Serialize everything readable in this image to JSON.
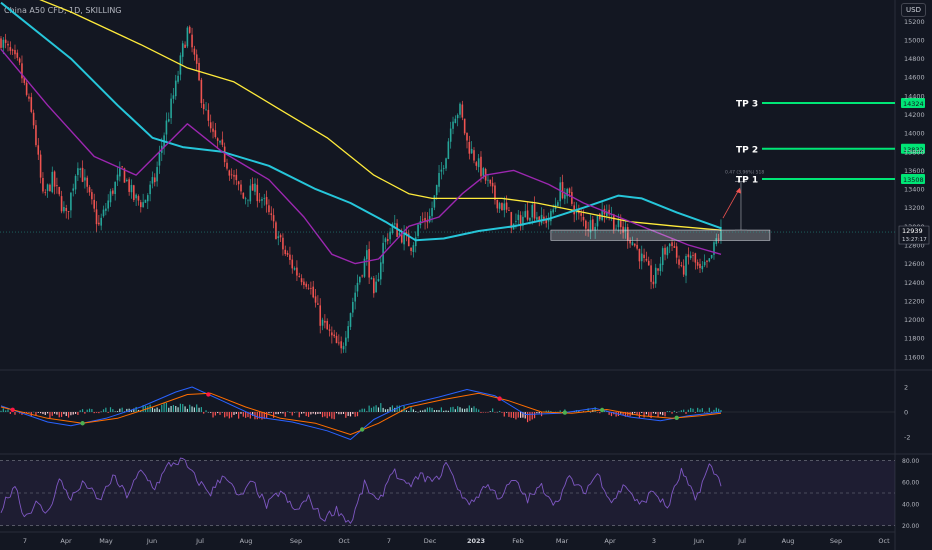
{
  "header": {
    "title": "China A50 CFD, 1D, SKILLING",
    "currency": "USD"
  },
  "colors": {
    "background": "#131722",
    "up": "#26a69a",
    "down": "#ef5350",
    "sma_fast": "#9c27b0",
    "sma_mid": "#26c6da",
    "sma_slow": "#ffeb3b",
    "tp_line": "#00e676",
    "rsi_line": "#7e57c2",
    "macd_line": "#2962ff",
    "signal_line": "#ff6d00"
  },
  "chart_data": [
    {
      "type": "candlestick",
      "name": "price",
      "y_ticks": [
        11600,
        11800,
        12000,
        12200,
        12400,
        12600,
        12800,
        13000,
        13200,
        13400,
        13600,
        13800,
        14000,
        14200,
        14400,
        14600,
        14800,
        15000,
        15200
      ],
      "ylim": [
        11480,
        15300
      ],
      "x_ticks": [
        "7",
        "Apr",
        "May",
        "Jun",
        "Jul",
        "Aug",
        "Sep",
        "Oct",
        "7",
        "Dec",
        "2023",
        "Feb",
        "Mar",
        "Apr",
        "3",
        "Jun",
        "Jul",
        "Aug",
        "Sep",
        "Oct"
      ],
      "close_path": [
        [
          0,
          15000
        ],
        [
          8,
          14700
        ],
        [
          14,
          14100
        ],
        [
          18,
          13300
        ],
        [
          22,
          13500
        ],
        [
          28,
          13100
        ],
        [
          33,
          13700
        ],
        [
          38,
          13300
        ],
        [
          42,
          13000
        ],
        [
          48,
          13400
        ],
        [
          52,
          13600
        ],
        [
          57,
          13300
        ],
        [
          61,
          13250
        ],
        [
          66,
          13500
        ],
        [
          70,
          14000
        ],
        [
          75,
          14500
        ],
        [
          78,
          14900
        ],
        [
          80,
          15100
        ],
        [
          83,
          14800
        ],
        [
          86,
          14400
        ],
        [
          90,
          14000
        ],
        [
          95,
          13800
        ],
        [
          100,
          13500
        ],
        [
          104,
          13300
        ],
        [
          108,
          13400
        ],
        [
          112,
          13300
        ],
        [
          117,
          13000
        ],
        [
          122,
          12700
        ],
        [
          127,
          12500
        ],
        [
          132,
          12400
        ],
        [
          137,
          12000
        ],
        [
          142,
          11800
        ],
        [
          146,
          11650
        ],
        [
          149,
          12000
        ],
        [
          153,
          12400
        ],
        [
          157,
          12700
        ],
        [
          160,
          12200
        ],
        [
          164,
          12800
        ],
        [
          168,
          13000
        ],
        [
          172,
          12900
        ],
        [
          176,
          12800
        ],
        [
          180,
          13050
        ],
        [
          184,
          13100
        ],
        [
          188,
          13500
        ],
        [
          191,
          13800
        ],
        [
          194,
          14200
        ],
        [
          197,
          14250
        ],
        [
          200,
          13900
        ],
        [
          204,
          13700
        ],
        [
          208,
          13500
        ],
        [
          212,
          13300
        ],
        [
          216,
          13200
        ],
        [
          220,
          13000
        ],
        [
          224,
          13100
        ],
        [
          228,
          13200
        ],
        [
          232,
          13050
        ],
        [
          236,
          13100
        ],
        [
          240,
          13400
        ],
        [
          244,
          13300
        ],
        [
          248,
          13100
        ],
        [
          252,
          13000
        ],
        [
          256,
          13100
        ],
        [
          260,
          13200
        ],
        [
          264,
          13000
        ],
        [
          268,
          12950
        ],
        [
          272,
          12800
        ],
        [
          276,
          12600
        ],
        [
          280,
          12400
        ],
        [
          284,
          12700
        ],
        [
          288,
          12850
        ],
        [
          292,
          12500
        ],
        [
          296,
          12700
        ],
        [
          300,
          12500
        ],
        [
          304,
          12600
        ],
        [
          307,
          12850
        ],
        [
          309,
          12940
        ]
      ],
      "sma_fast": [
        [
          0,
          14900
        ],
        [
          20,
          14300
        ],
        [
          40,
          13750
        ],
        [
          58,
          13550
        ],
        [
          70,
          13850
        ],
        [
          80,
          14100
        ],
        [
          95,
          13800
        ],
        [
          115,
          13500
        ],
        [
          130,
          13100
        ],
        [
          142,
          12700
        ],
        [
          152,
          12600
        ],
        [
          162,
          12650
        ],
        [
          175,
          13000
        ],
        [
          188,
          13100
        ],
        [
          198,
          13350
        ],
        [
          208,
          13550
        ],
        [
          220,
          13600
        ],
        [
          235,
          13450
        ],
        [
          250,
          13250
        ],
        [
          265,
          13100
        ],
        [
          280,
          12950
        ],
        [
          295,
          12800
        ],
        [
          309,
          12700
        ]
      ],
      "sma_mid": [
        [
          0,
          15400
        ],
        [
          30,
          14800
        ],
        [
          50,
          14300
        ],
        [
          65,
          13950
        ],
        [
          78,
          13850
        ],
        [
          95,
          13800
        ],
        [
          115,
          13650
        ],
        [
          135,
          13400
        ],
        [
          150,
          13250
        ],
        [
          165,
          13050
        ],
        [
          178,
          12850
        ],
        [
          190,
          12870
        ],
        [
          205,
          12950
        ],
        [
          220,
          13000
        ],
        [
          235,
          13080
        ],
        [
          250,
          13200
        ],
        [
          265,
          13330
        ],
        [
          275,
          13300
        ],
        [
          290,
          13150
        ],
        [
          309,
          12980
        ]
      ],
      "sma_slow": [
        [
          0,
          15600
        ],
        [
          30,
          15300
        ],
        [
          60,
          14950
        ],
        [
          80,
          14700
        ],
        [
          100,
          14550
        ],
        [
          120,
          14250
        ],
        [
          140,
          13950
        ],
        [
          160,
          13550
        ],
        [
          175,
          13350
        ],
        [
          185,
          13300
        ],
        [
          200,
          13300
        ],
        [
          215,
          13300
        ],
        [
          230,
          13250
        ],
        [
          250,
          13150
        ],
        [
          270,
          13050
        ],
        [
          290,
          13000
        ],
        [
          309,
          12960
        ]
      ],
      "support_zone": {
        "from_index": 236,
        "to_index": 330,
        "low": 12850,
        "high": 12960
      },
      "projection": {
        "from": 12960,
        "to": 13480,
        "label": "0.47 (3.96%) 518"
      },
      "targets": [
        {
          "label": "TP 1",
          "price": 13508,
          "price_label": "13508"
        },
        {
          "label": "TP 2",
          "price": 13832,
          "price_label": "13832"
        },
        {
          "label": "TP 3",
          "price": 14324,
          "price_label": "14324"
        }
      ],
      "last_price": {
        "price": 12939,
        "price_label": "12939",
        "countdown": "13:27:17"
      }
    },
    {
      "type": "histogram",
      "name": "macd",
      "y_ticks": [
        2,
        0,
        -2
      ],
      "ylim": [
        -3.2,
        3.2
      ],
      "macd": [
        [
          0,
          0.5
        ],
        [
          20,
          -0.8
        ],
        [
          30,
          -1.1
        ],
        [
          45,
          -0.5
        ],
        [
          60,
          0.4
        ],
        [
          75,
          1.6
        ],
        [
          82,
          2.0
        ],
        [
          95,
          0.9
        ],
        [
          110,
          -0.4
        ],
        [
          125,
          -0.8
        ],
        [
          140,
          -1.5
        ],
        [
          150,
          -2.2
        ],
        [
          160,
          -0.6
        ],
        [
          172,
          0.5
        ],
        [
          188,
          1.2
        ],
        [
          200,
          1.8
        ],
        [
          212,
          1.3
        ],
        [
          225,
          -0.2
        ],
        [
          240,
          -0.1
        ],
        [
          255,
          0.3
        ],
        [
          270,
          -0.4
        ],
        [
          283,
          -0.7
        ],
        [
          295,
          -0.3
        ],
        [
          309,
          0.0
        ]
      ],
      "signal": [
        [
          0,
          0.4
        ],
        [
          20,
          -0.5
        ],
        [
          35,
          -0.9
        ],
        [
          50,
          -0.5
        ],
        [
          65,
          0.4
        ],
        [
          80,
          1.4
        ],
        [
          90,
          1.5
        ],
        [
          105,
          0.4
        ],
        [
          120,
          -0.5
        ],
        [
          135,
          -0.9
        ],
        [
          150,
          -1.8
        ],
        [
          162,
          -0.9
        ],
        [
          175,
          0.4
        ],
        [
          190,
          1.0
        ],
        [
          205,
          1.5
        ],
        [
          218,
          0.9
        ],
        [
          232,
          0.0
        ],
        [
          245,
          -0.1
        ],
        [
          260,
          0.2
        ],
        [
          275,
          -0.3
        ],
        [
          288,
          -0.5
        ],
        [
          300,
          -0.3
        ],
        [
          309,
          -0.1
        ]
      ]
    },
    {
      "type": "line",
      "name": "rsi",
      "y_ticks": [
        80,
        60,
        40,
        20
      ],
      "ylim": [
        16,
        84
      ],
      "values": [
        [
          0,
          35
        ],
        [
          6,
          58
        ],
        [
          10,
          28
        ],
        [
          15,
          40
        ],
        [
          20,
          31
        ],
        [
          25,
          62
        ],
        [
          30,
          45
        ],
        [
          36,
          60
        ],
        [
          42,
          42
        ],
        [
          48,
          65
        ],
        [
          54,
          48
        ],
        [
          60,
          70
        ],
        [
          66,
          55
        ],
        [
          72,
          76
        ],
        [
          78,
          80
        ],
        [
          84,
          62
        ],
        [
          90,
          50
        ],
        [
          96,
          68
        ],
        [
          102,
          45
        ],
        [
          108,
          60
        ],
        [
          114,
          38
        ],
        [
          120,
          52
        ],
        [
          126,
          33
        ],
        [
          132,
          45
        ],
        [
          138,
          26
        ],
        [
          144,
          35
        ],
        [
          150,
          22
        ],
        [
          156,
          58
        ],
        [
          162,
          40
        ],
        [
          168,
          72
        ],
        [
          174,
          55
        ],
        [
          180,
          66
        ],
        [
          186,
          60
        ],
        [
          192,
          78
        ],
        [
          196,
          52
        ],
        [
          202,
          40
        ],
        [
          208,
          58
        ],
        [
          214,
          46
        ],
        [
          220,
          62
        ],
        [
          226,
          44
        ],
        [
          232,
          56
        ],
        [
          238,
          40
        ],
        [
          244,
          64
        ],
        [
          250,
          50
        ],
        [
          256,
          68
        ],
        [
          262,
          42
        ],
        [
          268,
          58
        ],
        [
          274,
          38
        ],
        [
          280,
          52
        ],
        [
          286,
          36
        ],
        [
          292,
          70
        ],
        [
          298,
          44
        ],
        [
          304,
          75
        ],
        [
          309,
          60
        ]
      ]
    }
  ]
}
